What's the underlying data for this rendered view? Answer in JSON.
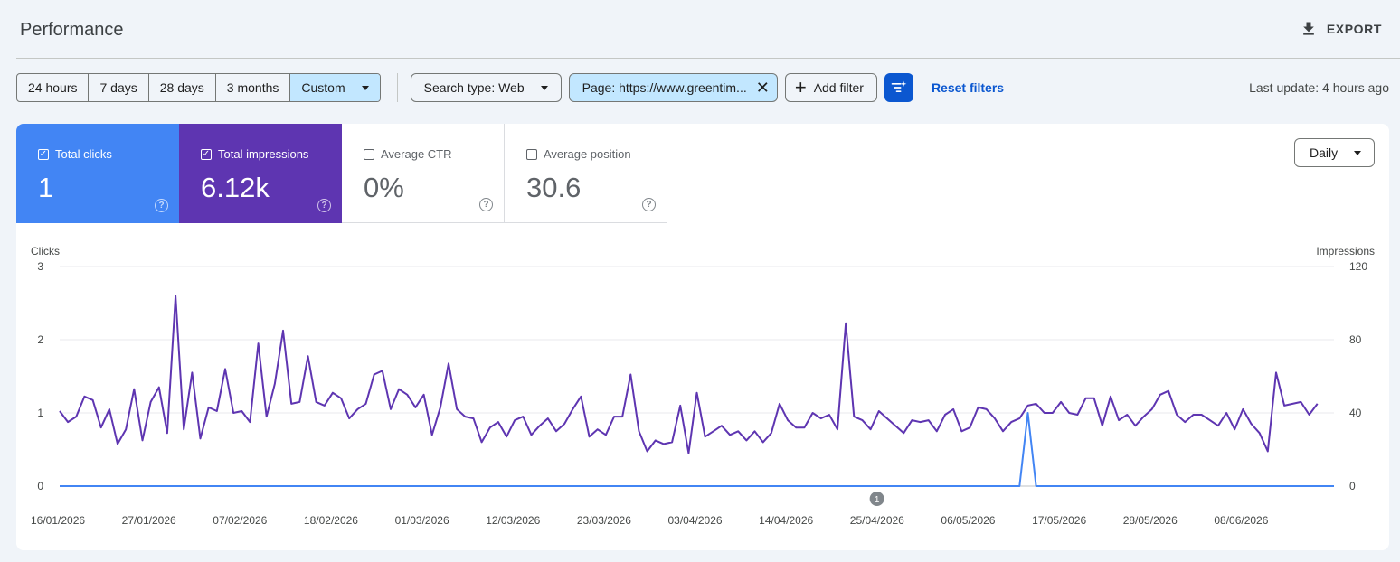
{
  "header": {
    "title": "Performance",
    "export_label": "EXPORT"
  },
  "toolbar": {
    "ranges": [
      "24 hours",
      "7 days",
      "28 days",
      "3 months"
    ],
    "custom_label": "Custom",
    "search_type": "Search type: Web",
    "page_filter": "Page: https://www.greentim...",
    "add_filter": "Add filter",
    "reset_filters": "Reset filters",
    "last_update": "Last update: 4 hours ago"
  },
  "metrics": {
    "clicks": {
      "label": "Total clicks",
      "value": "1",
      "checked": true
    },
    "impressions": {
      "label": "Total impressions",
      "value": "6.12k",
      "checked": true
    },
    "ctr": {
      "label": "Average CTR",
      "value": "0%",
      "checked": false
    },
    "position": {
      "label": "Average position",
      "value": "30.6",
      "checked": false
    }
  },
  "granularity": "Daily",
  "colors": {
    "clicks": "#4285f4",
    "impressions": "#5e35b1",
    "accent": "#0b57d0"
  },
  "chart_data": {
    "type": "line",
    "ylabel_left": "Clicks",
    "ylabel_right": "Impressions",
    "y_left_ticks": [
      "3",
      "2",
      "1",
      "0"
    ],
    "y_right_ticks": [
      "120",
      "80",
      "40",
      "0"
    ],
    "ylim_left": [
      0,
      3
    ],
    "ylim_right": [
      0,
      120
    ],
    "x_ticks": [
      "16/01/2026",
      "27/01/2026",
      "07/02/2026",
      "18/02/2026",
      "01/03/2026",
      "12/03/2026",
      "23/03/2026",
      "03/04/2026",
      "14/04/2026",
      "25/04/2026",
      "06/05/2026",
      "17/05/2026",
      "28/05/2026",
      "08/06/2026"
    ],
    "annotation": "1",
    "x_start": "16/01/2026",
    "x_end": "19/06/2026",
    "series": [
      {
        "name": "Clicks",
        "axis": "left",
        "values": [
          0,
          0,
          0,
          0,
          0,
          0,
          0,
          0,
          0,
          0,
          0,
          0,
          0,
          0,
          0,
          0,
          0,
          0,
          0,
          0,
          0,
          0,
          0,
          0,
          0,
          0,
          0,
          0,
          0,
          0,
          0,
          0,
          0,
          0,
          0,
          0,
          0,
          0,
          0,
          0,
          0,
          0,
          0,
          0,
          0,
          0,
          0,
          0,
          0,
          0,
          0,
          0,
          0,
          0,
          0,
          0,
          0,
          0,
          0,
          0,
          0,
          0,
          0,
          0,
          0,
          0,
          0,
          0,
          0,
          0,
          0,
          0,
          0,
          0,
          0,
          0,
          0,
          0,
          0,
          0,
          0,
          0,
          0,
          0,
          0,
          0,
          0,
          0,
          0,
          0,
          0,
          0,
          0,
          0,
          0,
          0,
          0,
          0,
          0,
          0,
          0,
          0,
          0,
          0,
          0,
          0,
          0,
          0,
          0,
          0,
          0,
          0,
          0,
          0,
          0,
          0,
          0,
          1,
          0,
          0,
          0,
          0,
          0,
          0,
          0,
          0,
          0,
          0,
          0,
          0,
          0,
          0,
          0,
          0,
          0,
          0,
          0,
          0,
          0,
          0,
          0,
          0,
          0,
          0,
          0,
          0,
          0,
          0,
          0,
          0,
          0,
          0,
          0,
          0,
          0
        ]
      },
      {
        "name": "Impressions",
        "axis": "right",
        "values": [
          41,
          35,
          38,
          49,
          47,
          32,
          42,
          23,
          31,
          53,
          25,
          46,
          54,
          29,
          104,
          31,
          62,
          26,
          43,
          41,
          64,
          40,
          41,
          35,
          78,
          38,
          56,
          85,
          45,
          46,
          71,
          46,
          44,
          51,
          48,
          37,
          42,
          45,
          61,
          63,
          42,
          53,
          50,
          43,
          50,
          28,
          43,
          67,
          42,
          38,
          37,
          24,
          32,
          35,
          27,
          36,
          38,
          28,
          33,
          37,
          30,
          34,
          42,
          49,
          27,
          31,
          28,
          38,
          38,
          61,
          30,
          19,
          25,
          23,
          24,
          44,
          18,
          51,
          27,
          30,
          33,
          28,
          30,
          25,
          30,
          24,
          29,
          45,
          36,
          32,
          32,
          40,
          37,
          39,
          31,
          89,
          38,
          36,
          31,
          41,
          37,
          33,
          29,
          36,
          35,
          36,
          30,
          39,
          42,
          30,
          32,
          43,
          42,
          37,
          30,
          35,
          37,
          44,
          45,
          40,
          40,
          46,
          40,
          39,
          48,
          48,
          33,
          49,
          36,
          39,
          33,
          38,
          42,
          50,
          52,
          39,
          35,
          39,
          39,
          36,
          33,
          40,
          31,
          42,
          34,
          29,
          19,
          62,
          44,
          45,
          46,
          39,
          45
        ]
      }
    ]
  }
}
